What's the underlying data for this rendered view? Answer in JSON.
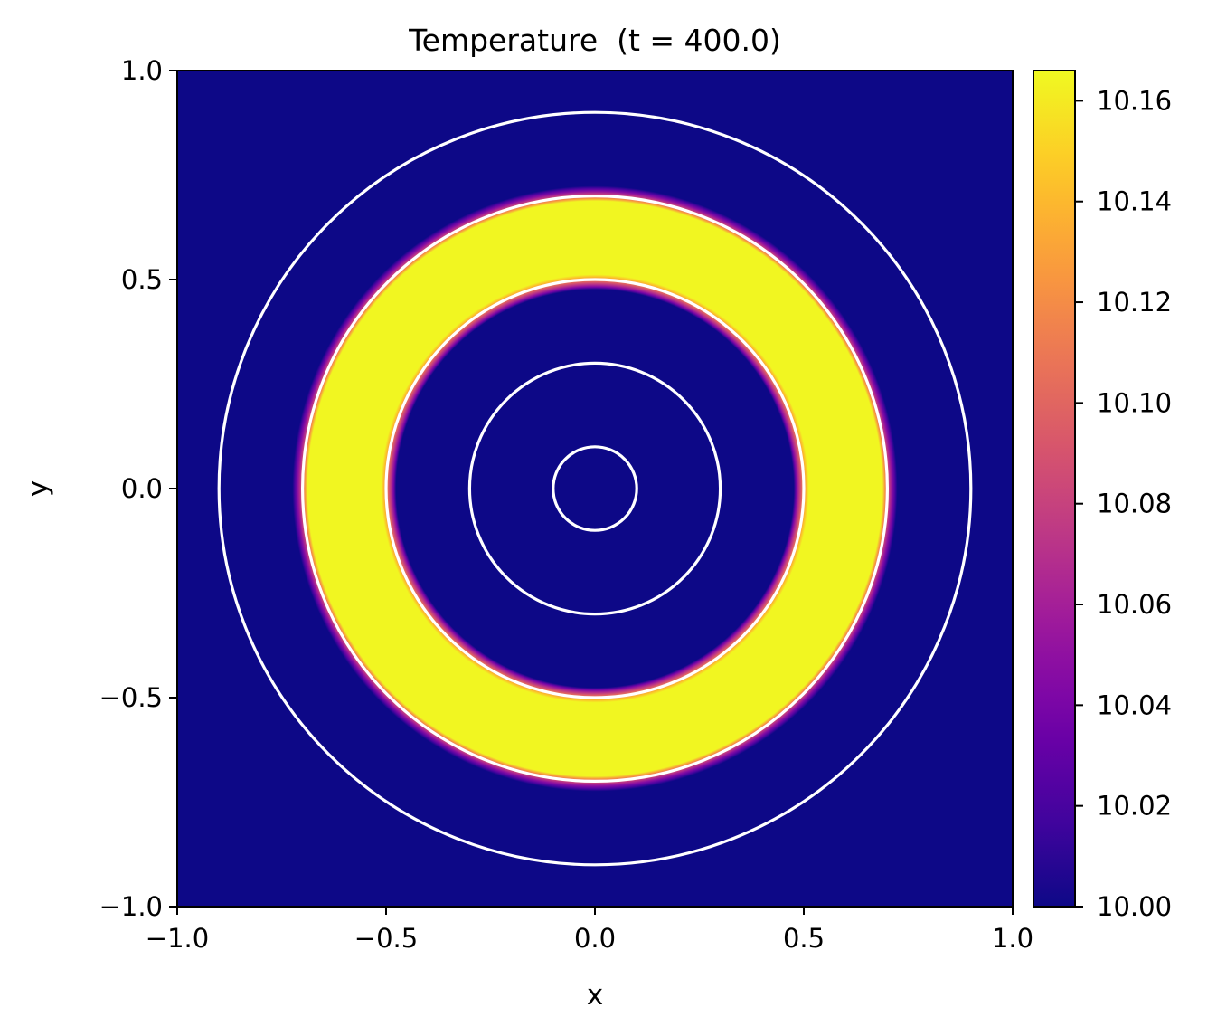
{
  "chart_data": {
    "type": "heatmap",
    "title": "Temperature  (t = 400.0)",
    "xlabel": "x",
    "ylabel": "y",
    "xlim": [
      -1.0,
      1.0
    ],
    "ylim": [
      -1.0,
      1.0
    ],
    "x_ticks": [
      -1.0,
      -0.5,
      0.0,
      0.5,
      1.0
    ],
    "x_tick_labels": [
      "−1.0",
      "−0.5",
      "0.0",
      "0.5",
      "1.0"
    ],
    "y_ticks": [
      1.0,
      0.5,
      0.0,
      -0.5,
      -1.0
    ],
    "y_tick_labels": [
      "1.0",
      "0.5",
      "0.0",
      "−0.5",
      "−1.0"
    ],
    "field": {
      "kind": "radial_annulus",
      "base_value": 10.0,
      "peak_value": 10.165,
      "r_inner": 0.5,
      "r_outer": 0.7,
      "edge_width": 0.012
    },
    "circle_radii": [
      0.1,
      0.3,
      0.5,
      0.7,
      0.9
    ],
    "circle_color": "#ffffff",
    "colormap": "plasma",
    "colorbar": {
      "min": 10.0,
      "max": 10.166,
      "ticks": [
        10.0,
        10.02,
        10.04,
        10.06,
        10.08,
        10.1,
        10.12,
        10.14,
        10.16
      ],
      "tick_labels": [
        "10.00",
        "10.02",
        "10.04",
        "10.06",
        "10.08",
        "10.10",
        "10.12",
        "10.14",
        "10.16"
      ]
    },
    "grid": false
  }
}
